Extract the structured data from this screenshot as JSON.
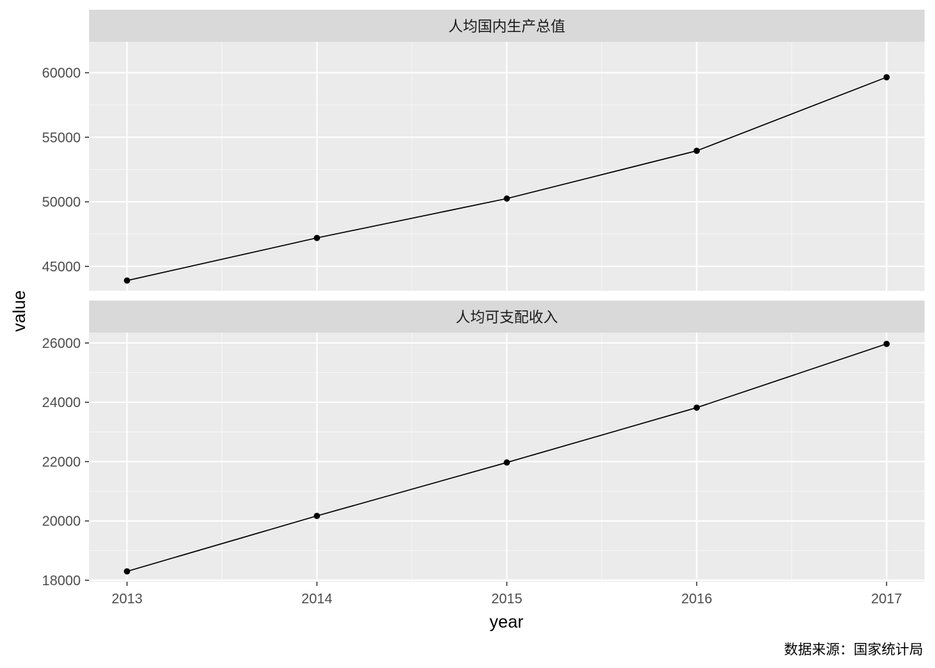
{
  "chart_data": {
    "type": "line",
    "facet": "vertical",
    "xlabel": "year",
    "ylabel": "value",
    "caption": "数据来源：国家统计局",
    "x": [
      2013,
      2014,
      2015,
      2016,
      2017
    ],
    "x_ticks": [
      "2013",
      "2014",
      "2015",
      "2016",
      "2017"
    ],
    "xlim": [
      2012.8,
      2017.2
    ],
    "panels": [
      {
        "strip": "人均国内生产总值",
        "values": [
          43900,
          47200,
          50250,
          53950,
          59650
        ],
        "ylim": [
          43100,
          62400
        ],
        "y_ticks": [
          45000,
          50000,
          55000,
          60000
        ],
        "y_tick_labels": [
          "45000",
          "50000",
          "55000",
          "60000"
        ]
      },
      {
        "strip": "人均可支配收入",
        "values": [
          18300,
          20170,
          21970,
          23820,
          25970
        ],
        "ylim": [
          17950,
          26350
        ],
        "y_ticks": [
          18000,
          20000,
          22000,
          24000,
          26000
        ],
        "y_tick_labels": [
          "18000",
          "20000",
          "22000",
          "24000",
          "26000"
        ]
      }
    ],
    "grid": true,
    "colors": {
      "panel_bg": "#ebebeb",
      "strip_bg": "#d9d9d9",
      "grid": "#ffffff",
      "line": "#000000",
      "point": "#000000",
      "tick_text": "#4d4d4d"
    }
  }
}
